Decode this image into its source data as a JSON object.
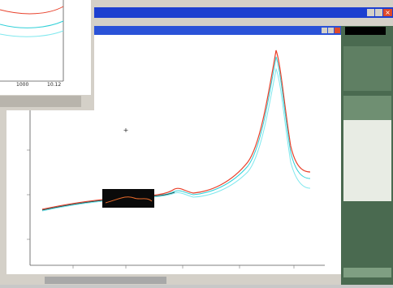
{
  "main_window": {
    "close": "×"
  },
  "inset": {
    "x_labels": [
      "1000",
      "10.12"
    ]
  }
}
